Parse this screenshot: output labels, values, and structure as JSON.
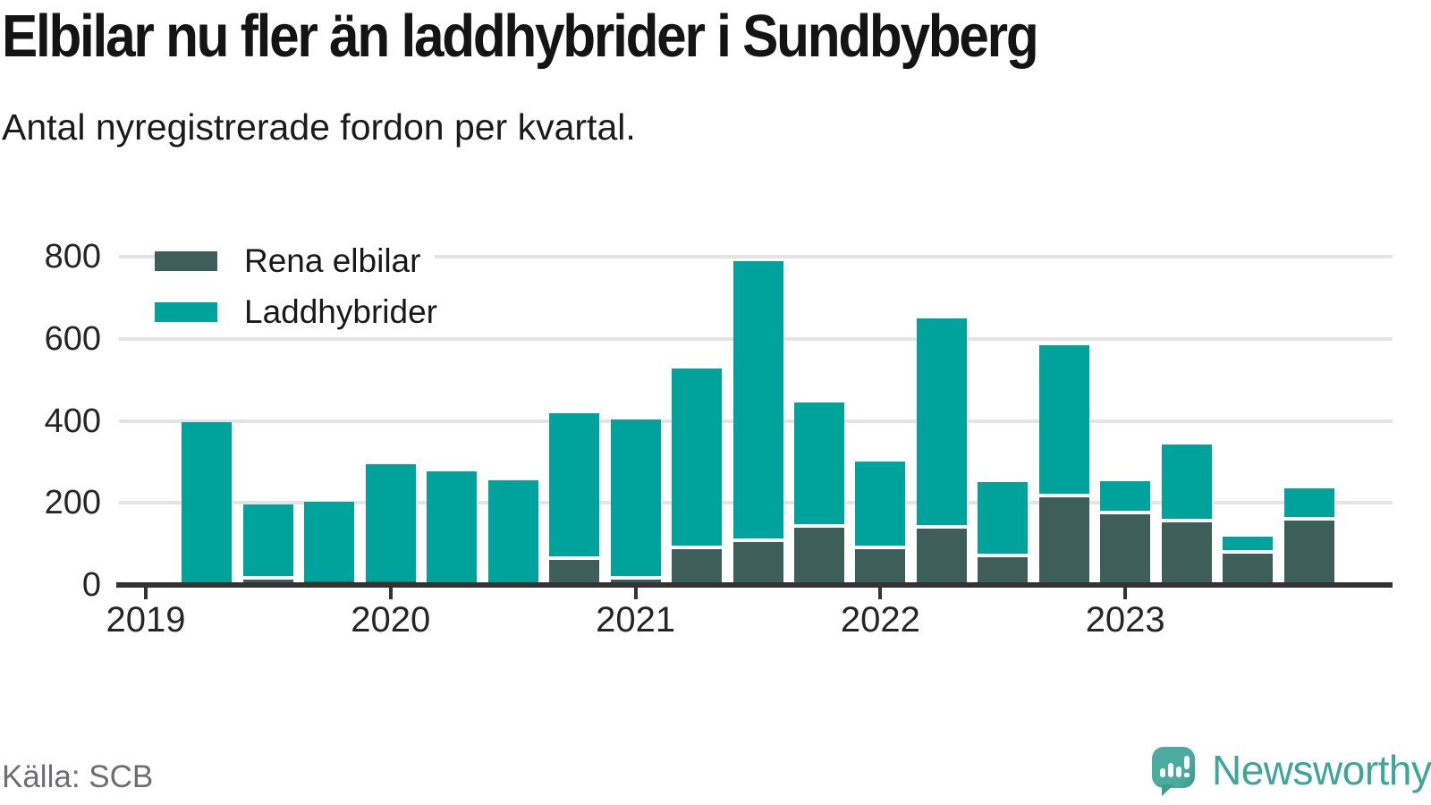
{
  "header": {
    "title": "Elbilar nu fler än laddhybrider i Sundbyberg",
    "subtitle": "Antal nyregistrerade fordon per kvartal."
  },
  "footer": {
    "source": "Källa: SCB",
    "brand": "Newsworthy"
  },
  "colors": {
    "elbilar": "#3d5e59",
    "laddhybrider": "#00a39c",
    "brand_teal": "#3fa59a",
    "axis": "#333333",
    "gridline": "#e4e4e4",
    "source_text": "#6d6d75"
  },
  "chart_data": {
    "type": "bar",
    "stacked": true,
    "title": "Elbilar nu fler än laddhybrider i Sundbyberg",
    "subtitle": "Antal nyregistrerade fordon per kvartal.",
    "xlabel": "",
    "ylabel": "",
    "ylim": [
      0,
      800
    ],
    "y_ticks": [
      0,
      200,
      400,
      600,
      800
    ],
    "x_tick_labels": [
      "2019",
      "2020",
      "2021",
      "2022",
      "2023"
    ],
    "grid": "horizontal",
    "legend_position": "top-left-inside",
    "categories": [
      "2019 Q2",
      "2019 Q3",
      "2019 Q4",
      "2020 Q1",
      "2020 Q2",
      "2020 Q3",
      "2020 Q4",
      "2021 Q1",
      "2021 Q2",
      "2021 Q3",
      "2021 Q4",
      "2022 Q1",
      "2022 Q2",
      "2022 Q3",
      "2022 Q4",
      "2023 Q1",
      "2023 Q2",
      "2023 Q3",
      "2023 Q4"
    ],
    "series": [
      {
        "name": "Rena elbilar",
        "color": "#3d5e59",
        "values": [
          2,
          13,
          8,
          9,
          2,
          6,
          60,
          14,
          88,
          105,
          140,
          88,
          138,
          68,
          213,
          173,
          153,
          76,
          158
        ]
      },
      {
        "name": "Laddhybrider",
        "color": "#00a39c",
        "values": [
          395,
          184,
          194,
          285,
          275,
          250,
          359,
          389,
          441,
          685,
          306,
          212,
          512,
          183,
          372,
          80,
          190,
          42,
          77
        ]
      }
    ],
    "totals": [
      397,
      197,
      202,
      294,
      277,
      256,
      419,
      403,
      529,
      790,
      446,
      300,
      650,
      251,
      585,
      253,
      343,
      118,
      235
    ]
  }
}
